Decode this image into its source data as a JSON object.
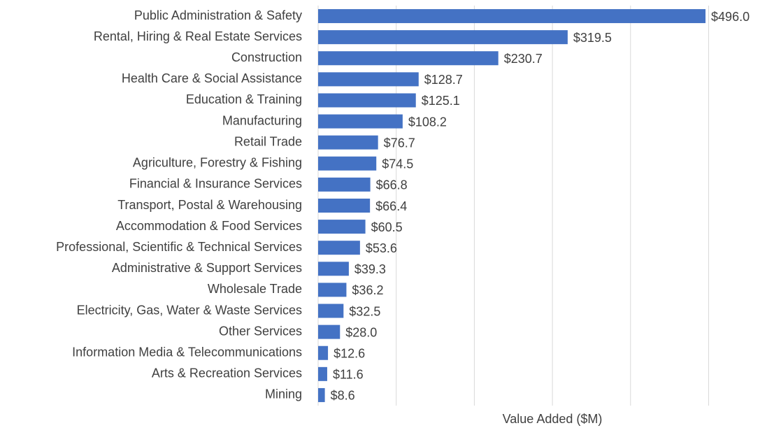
{
  "chart_data": {
    "type": "hbar",
    "categories": [
      "Public Administration & Safety",
      "Rental, Hiring & Real Estate Services",
      "Construction",
      "Health Care & Social Assistance",
      "Education & Training",
      "Manufacturing",
      "Retail Trade",
      "Agriculture, Forestry & Fishing",
      "Financial & Insurance Services",
      "Transport, Postal & Warehousing",
      "Accommodation & Food Services",
      "Professional, Scientific & Technical Services",
      "Administrative & Support Services",
      "Wholesale Trade",
      "Electricity, Gas, Water & Waste Services",
      "Other Services",
      "Information Media & Telecommunications",
      "Arts & Recreation Services",
      "Mining"
    ],
    "values": [
      496.0,
      319.5,
      230.7,
      128.7,
      125.1,
      108.2,
      76.7,
      74.5,
      66.8,
      66.4,
      60.5,
      53.6,
      39.3,
      36.2,
      32.5,
      28.0,
      12.6,
      11.6,
      8.6
    ],
    "value_labels": [
      "$496.0",
      "$319.5",
      "$230.7",
      "$128.7",
      "$125.1",
      "$108.2",
      "$76.7",
      "$74.5",
      "$66.8",
      "$66.4",
      "$60.5",
      "$53.6",
      "$39.3",
      "$36.2",
      "$32.5",
      "$28.0",
      "$12.6",
      "$11.6",
      "$8.6"
    ],
    "color": "#4472c4",
    "xlabel": "Value Added ($M)",
    "xlim": [
      0,
      500
    ],
    "xticks": [
      0,
      100,
      200,
      300,
      400,
      500
    ],
    "grid": true
  }
}
